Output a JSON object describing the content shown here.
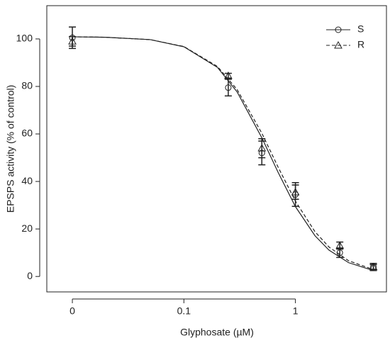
{
  "chart_data": {
    "type": "line",
    "x_label": "Glyphosate (µM)",
    "y_label": "EPSPS activity (% of control)",
    "log_x": true,
    "legend_position": "top-right",
    "xlim": [
      0.0059,
      6.55
    ],
    "ylim": [
      -6.5,
      114
    ],
    "xticks": [
      {
        "value": 0.01,
        "label": "0"
      },
      0.1,
      1
    ],
    "yticks": [
      0,
      20,
      40,
      60,
      80,
      100
    ],
    "x": [
      0.01,
      0.25,
      0.5,
      1,
      2.5,
      5
    ],
    "series": [
      {
        "name": "S",
        "color": "#222222",
        "marker": "circle",
        "dash": false,
        "values": [
          100.5,
          79.5,
          52,
          34.5,
          10,
          4
        ],
        "errors": [
          4.5,
          3.5,
          5,
          5,
          2,
          1.5
        ],
        "curve_x": [
          0.01,
          0.02,
          0.05,
          0.1,
          0.2,
          0.3,
          0.5,
          0.7,
          1,
          1.5,
          2,
          3,
          5
        ],
        "curve_values": [
          100.9,
          100.7,
          99.7,
          96.7,
          88.0,
          77.7,
          58.4,
          43.8,
          29.4,
          17.1,
          11.1,
          5.8,
          2.5
        ]
      },
      {
        "name": "R",
        "color": "#222222",
        "marker": "triangle",
        "dash": true,
        "values": [
          99,
          84.5,
          54,
          35.5,
          13,
          4
        ],
        "errors": [
          2,
          1,
          4,
          3,
          1.5,
          1
        ],
        "curve_x": [
          0.01,
          0.02,
          0.05,
          0.1,
          0.2,
          0.3,
          0.5,
          0.7,
          1,
          1.5,
          2,
          3,
          5
        ],
        "curve_values": [
          100.9,
          100.7,
          99.7,
          96.8,
          88.4,
          78.7,
          60.3,
          46.0,
          31.7,
          18.8,
          12.4,
          6.6,
          2.9
        ]
      }
    ]
  }
}
